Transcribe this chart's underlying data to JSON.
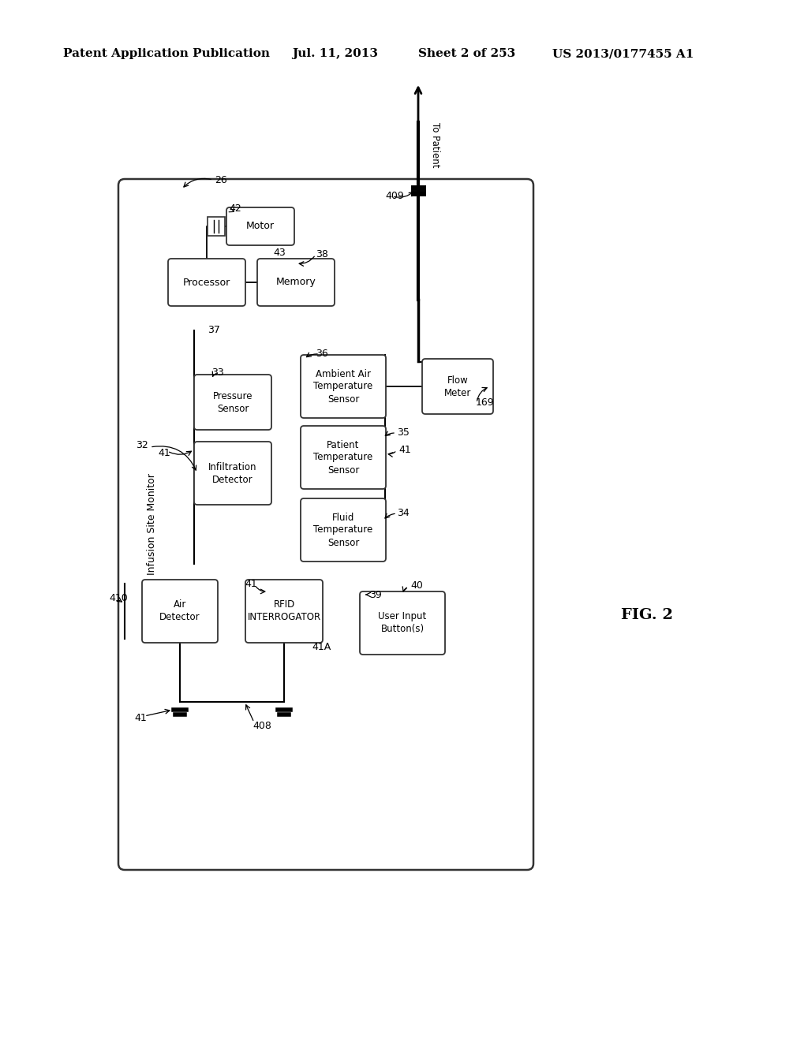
{
  "background_color": "#ffffff",
  "header_text": "Patent Application Publication",
  "header_date": "Jul. 11, 2013",
  "header_sheet": "Sheet 2 of 253",
  "header_patent": "US 2013/0177455 A1",
  "fig_label": "FIG. 2"
}
